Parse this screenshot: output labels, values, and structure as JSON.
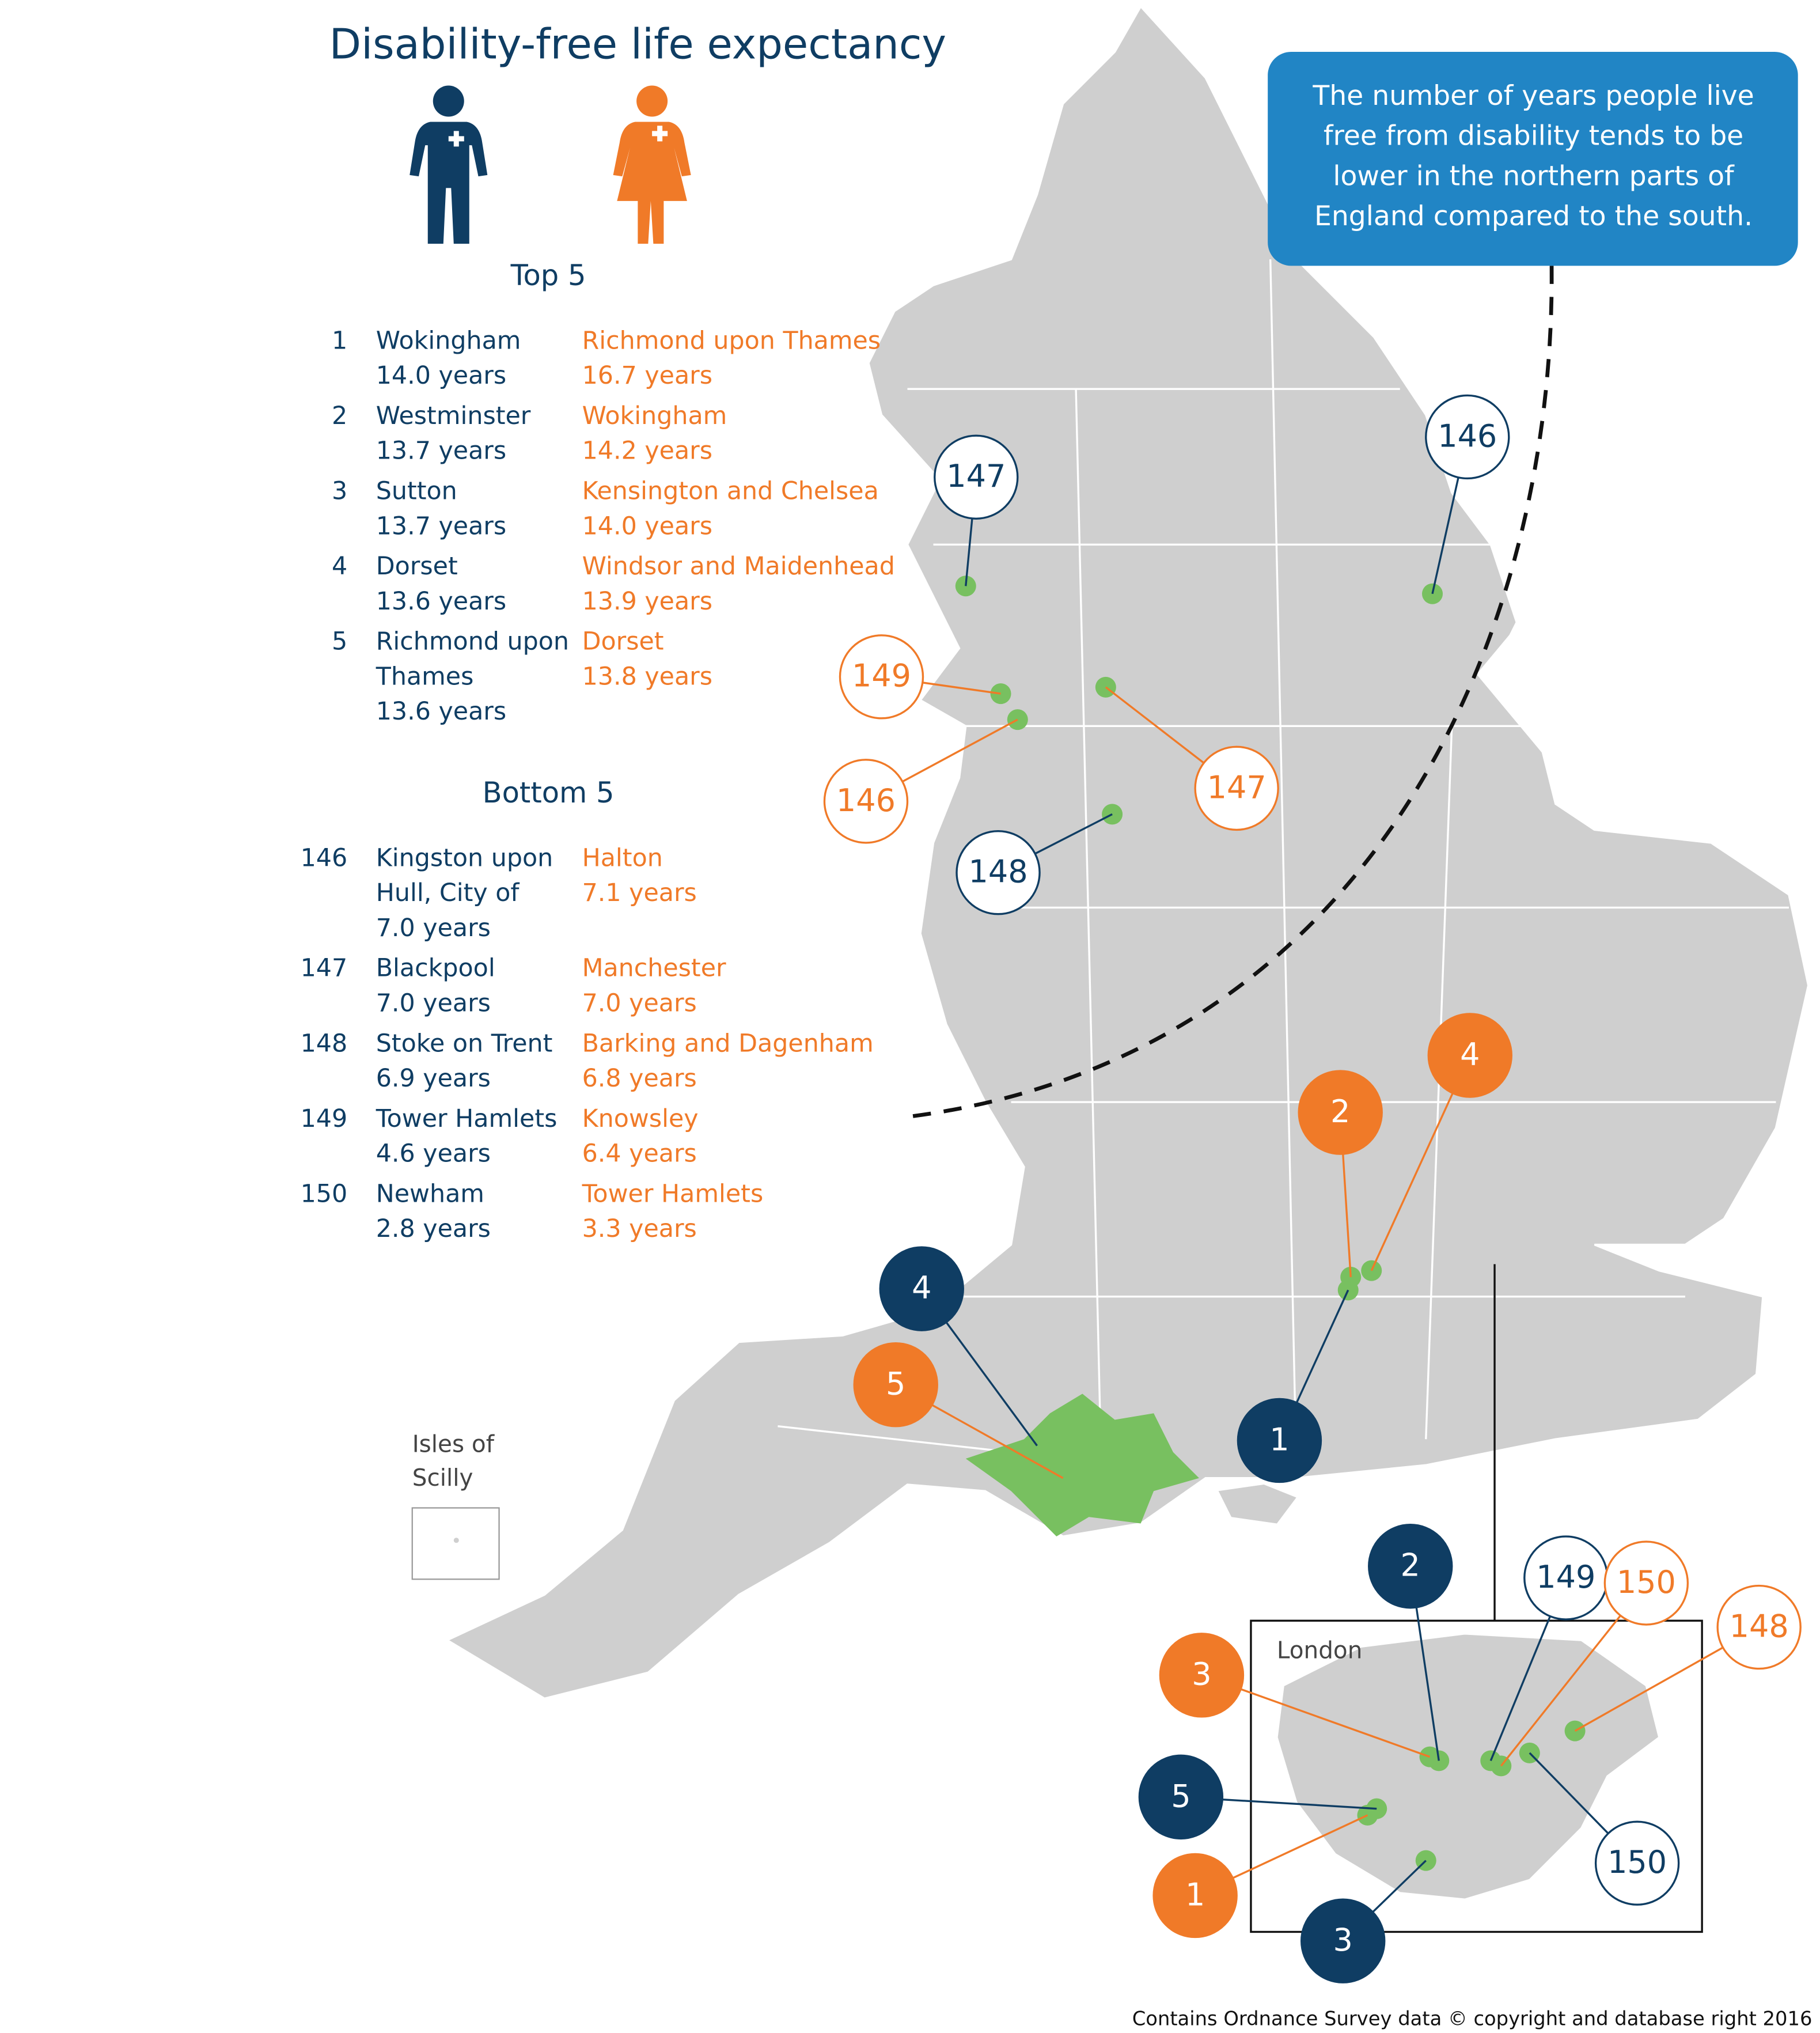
{
  "title": "Disability-free life expectancy",
  "callout": [
    "The number of years people live",
    "free from disability tends to be",
    "lower in the northern parts of",
    "England compared to the south."
  ],
  "top5": {
    "heading": "Top 5",
    "rows": [
      {
        "rank": "1",
        "male": [
          "Wokingham",
          "14.0 years"
        ],
        "female": [
          "Richmond upon Thames",
          "16.7 years"
        ]
      },
      {
        "rank": "2",
        "male": [
          "Westminster",
          "13.7 years"
        ],
        "female": [
          "Wokingham",
          "14.2 years"
        ]
      },
      {
        "rank": "3",
        "male": [
          "Sutton",
          "13.7 years"
        ],
        "female": [
          "Kensington and Chelsea",
          "14.0 years"
        ]
      },
      {
        "rank": "4",
        "male": [
          "Dorset",
          "13.6 years"
        ],
        "female": [
          "Windsor and Maidenhead",
          "13.9 years"
        ]
      },
      {
        "rank": "5",
        "male": [
          "Richmond upon",
          "Thames",
          "13.6 years"
        ],
        "female": [
          "Dorset",
          "13.8 years"
        ]
      }
    ]
  },
  "bottom5": {
    "heading": "Bottom 5",
    "rows": [
      {
        "rank": "146",
        "male": [
          "Kingston upon",
          "Hull, City of",
          "7.0 years"
        ],
        "female": [
          "Halton",
          "7.1 years"
        ]
      },
      {
        "rank": "147",
        "male": [
          "Blackpool",
          "7.0 years"
        ],
        "female": [
          "Manchester",
          "7.0 years"
        ]
      },
      {
        "rank": "148",
        "male": [
          "Stoke on Trent",
          "6.9 years"
        ],
        "female": [
          "Barking and Dagenham",
          "6.8 years"
        ]
      },
      {
        "rank": "149",
        "male": [
          "Tower Hamlets",
          "4.6 years"
        ],
        "female": [
          "Knowsley",
          "6.4 years"
        ]
      },
      {
        "rank": "150",
        "male": [
          "Newham",
          "2.8 years"
        ],
        "female": [
          "Tower Hamlets",
          "3.3 years"
        ]
      }
    ]
  },
  "colors": {
    "male": "#0f3d63",
    "female": "#f07a28"
  },
  "markers": [
    {
      "label": 147,
      "color": "#0f3d63",
      "filled": false
    },
    {
      "label": 146,
      "color": "#0f3d63",
      "filled": false
    },
    {
      "label": 148,
      "color": "#0f3d63",
      "filled": false
    },
    {
      "label": 149,
      "color": "#0f3d63",
      "filled": false
    },
    {
      "label": 150,
      "color": "#0f3d63",
      "filled": false
    },
    {
      "label": 149,
      "color": "#f07a28",
      "filled": false
    },
    {
      "label": 146,
      "color": "#f07a28",
      "filled": false
    },
    {
      "label": 147,
      "color": "#f07a28",
      "filled": false
    },
    {
      "label": 150,
      "color": "#f07a28",
      "filled": false
    },
    {
      "label": 148,
      "color": "#f07a28",
      "filled": false
    },
    {
      "label": 2,
      "color": "#f07a28",
      "filled": true
    },
    {
      "label": 4,
      "color": "#f07a28",
      "filled": true
    },
    {
      "label": 5,
      "color": "#f07a28",
      "filled": true
    },
    {
      "label": 3,
      "color": "#f07a28",
      "filled": true
    },
    {
      "label": 1,
      "color": "#f07a28",
      "filled": true
    },
    {
      "label": 4,
      "color": "#0f3d63",
      "filled": true
    },
    {
      "label": 1,
      "color": "#0f3d63",
      "filled": true
    },
    {
      "label": 2,
      "color": "#0f3d63",
      "filled": true
    },
    {
      "label": 5,
      "color": "#0f3d63",
      "filled": true
    },
    {
      "label": 3,
      "color": "#0f3d63",
      "filled": true
    }
  ],
  "isles_label": [
    "Isles of",
    "Scilly"
  ],
  "london_label": "London",
  "credit": "Contains Ordnance Survey data © copyright and database right 2016"
}
